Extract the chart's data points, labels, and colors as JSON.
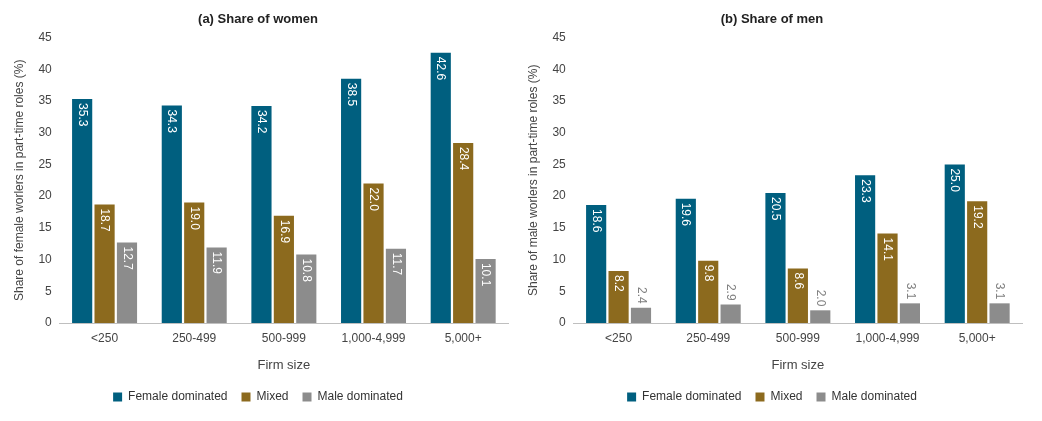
{
  "chart_data": [
    {
      "type": "bar",
      "title": "(a) Share of women",
      "xlabel": "Firm size",
      "ylabel": "Share of female worlers in part-time roles (%)",
      "categories": [
        "<250",
        "250-499",
        "500-999",
        "1,000-4,999",
        "5,000+"
      ],
      "series": [
        {
          "name": "Female dominated",
          "color": "#005f7f",
          "values": [
            35.3,
            34.3,
            34.2,
            38.5,
            42.6
          ],
          "value_labels": [
            "35.3",
            "34.3",
            "34.2",
            "38.5",
            "42.6"
          ]
        },
        {
          "name": "Mixed",
          "color": "#8c6a1e",
          "values": [
            18.7,
            19,
            16.9,
            22,
            28.4
          ],
          "value_labels": [
            "18.7",
            "19.0",
            "16.9",
            "22.0",
            "28.4"
          ]
        },
        {
          "name": "Male dominated",
          "color": "#8c8c8c",
          "values": [
            12.7,
            11.9,
            10.8,
            11.7,
            10.1
          ],
          "value_labels": [
            "12.7",
            "11.9",
            "10.8",
            "11.7",
            "10.1"
          ]
        }
      ],
      "ylim": [
        0,
        45
      ],
      "yticks": [
        0,
        5,
        10,
        15,
        20,
        25,
        30,
        35,
        40,
        45
      ],
      "grid": false,
      "legend": "bottom"
    },
    {
      "type": "bar",
      "title": "(b) Share of men",
      "xlabel": "Firm size",
      "ylabel": "Share of male worlers in part-time roles (%)",
      "categories": [
        "<250",
        "250-499",
        "500-999",
        "1,000-4,999",
        "5,000+"
      ],
      "series": [
        {
          "name": "Female dominated",
          "color": "#005f7f",
          "values": [
            18.6,
            19.6,
            20.5,
            23.3,
            25
          ],
          "value_labels": [
            "18.6",
            "19.6",
            "20.5",
            "23.3",
            "25.0"
          ]
        },
        {
          "name": "Mixed",
          "color": "#8c6a1e",
          "values": [
            8.2,
            9.8,
            8.6,
            14.1,
            19.2
          ],
          "value_labels": [
            "8.2",
            "9.8",
            "8.6",
            "14.1",
            "19.2"
          ]
        },
        {
          "name": "Male dominated",
          "color": "#8c8c8c",
          "values": [
            2.4,
            2.9,
            2,
            3.1,
            3.1
          ],
          "value_labels": [
            "2.4",
            "2.9",
            "2.0",
            "3.1",
            "3.1"
          ]
        }
      ],
      "ylim": [
        0,
        45
      ],
      "yticks": [
        0,
        5,
        10,
        15,
        20,
        25,
        30,
        35,
        40,
        45
      ],
      "grid": false,
      "legend": "bottom"
    }
  ]
}
